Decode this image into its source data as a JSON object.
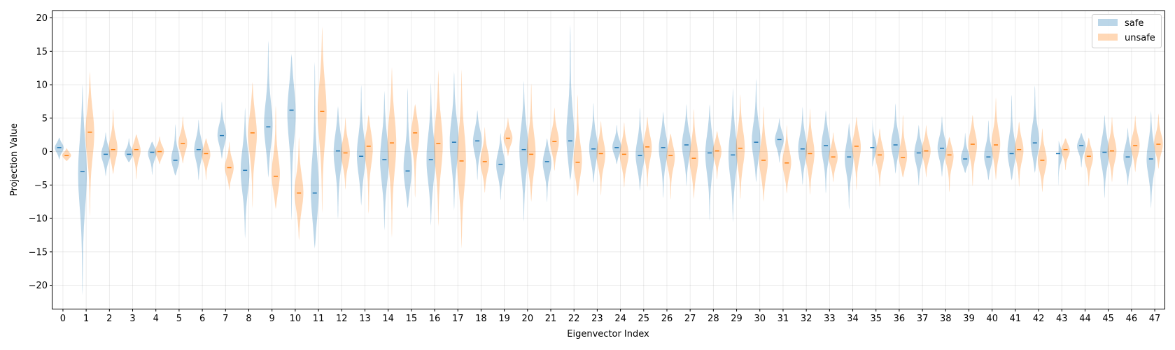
{
  "chart_data": {
    "type": "violin",
    "xlabel": "Eigenvector Index",
    "ylabel": "Projection Value",
    "ylim": [
      -23.5,
      21
    ],
    "yticks": [
      -20,
      -15,
      -10,
      -5,
      0,
      5,
      10,
      15,
      20
    ],
    "grid": true,
    "legend_position": "top-right",
    "colors": {
      "safe": "#1f77b4",
      "unsafe": "#ff7f0e"
    },
    "series": [
      {
        "name": "safe",
        "key": "safe"
      },
      {
        "name": "unsafe",
        "key": "unsafe"
      }
    ],
    "categories": [
      {
        "label": "0",
        "safe": {
          "min": -1.2,
          "max": 2.1,
          "median": 0.6
        },
        "unsafe": {
          "min": -1.4,
          "max": 0.5,
          "median": -0.6
        }
      },
      {
        "label": "1",
        "safe": {
          "min": -21.5,
          "max": 10.1,
          "median": -3.0
        },
        "unsafe": {
          "min": -9.7,
          "max": 12.0,
          "median": 2.9
        }
      },
      {
        "label": "2",
        "safe": {
          "min": -3.7,
          "max": 2.9,
          "median": -0.4
        },
        "unsafe": {
          "min": -3.4,
          "max": 6.4,
          "median": 0.3
        }
      },
      {
        "label": "3",
        "safe": {
          "min": -1.6,
          "max": 2.0,
          "median": -0.4
        },
        "unsafe": {
          "min": -4.2,
          "max": 2.6,
          "median": 0.3
        }
      },
      {
        "label": "4",
        "safe": {
          "min": -3.5,
          "max": 1.5,
          "median": -0.1
        },
        "unsafe": {
          "min": -1.9,
          "max": 2.3,
          "median": 0.0
        }
      },
      {
        "label": "5",
        "safe": {
          "min": -3.6,
          "max": 4.1,
          "median": -1.3
        },
        "unsafe": {
          "min": -1.8,
          "max": 5.3,
          "median": 1.2
        }
      },
      {
        "label": "6",
        "safe": {
          "min": -4.3,
          "max": 4.8,
          "median": 0.3
        },
        "unsafe": {
          "min": -4.3,
          "max": 2.0,
          "median": -0.3
        }
      },
      {
        "label": "7",
        "safe": {
          "min": -1.1,
          "max": 7.5,
          "median": 2.4
        },
        "unsafe": {
          "min": -5.8,
          "max": 1.5,
          "median": -2.4
        }
      },
      {
        "label": "8",
        "safe": {
          "min": -13.0,
          "max": 6.6,
          "median": -2.8
        },
        "unsafe": {
          "min": -8.5,
          "max": 10.4,
          "median": 2.8
        }
      },
      {
        "label": "9",
        "safe": {
          "min": -3.9,
          "max": 16.6,
          "median": 3.7
        },
        "unsafe": {
          "min": -8.6,
          "max": 6.9,
          "median": -3.7
        }
      },
      {
        "label": "10",
        "safe": {
          "min": -10.3,
          "max": 14.6,
          "median": 6.2
        },
        "unsafe": {
          "min": -13.3,
          "max": 2.2,
          "median": -6.2
        }
      },
      {
        "label": "11",
        "safe": {
          "min": -14.5,
          "max": 13.4,
          "median": -6.2
        },
        "unsafe": {
          "min": -9.2,
          "max": 18.7,
          "median": 6.0
        }
      },
      {
        "label": "12",
        "safe": {
          "min": -10.1,
          "max": 6.8,
          "median": 0.1
        },
        "unsafe": {
          "min": -5.7,
          "max": 5.1,
          "median": -0.2
        }
      },
      {
        "label": "13",
        "safe": {
          "min": -8.1,
          "max": 10.0,
          "median": -0.7
        },
        "unsafe": {
          "min": -9.3,
          "max": 5.5,
          "median": 0.8
        }
      },
      {
        "label": "14",
        "safe": {
          "min": -11.8,
          "max": 9.1,
          "median": -1.2
        },
        "unsafe": {
          "min": -12.9,
          "max": 12.6,
          "median": 1.3
        }
      },
      {
        "label": "15",
        "safe": {
          "min": -8.5,
          "max": 9.5,
          "median": -2.9
        },
        "unsafe": {
          "min": -6.9,
          "max": 7.1,
          "median": 2.8
        }
      },
      {
        "label": "16",
        "safe": {
          "min": -11.1,
          "max": 10.3,
          "median": -1.2
        },
        "unsafe": {
          "min": -11.2,
          "max": 12.2,
          "median": 1.2
        }
      },
      {
        "label": "17",
        "safe": {
          "min": -8.8,
          "max": 12.0,
          "median": 1.4
        },
        "unsafe": {
          "min": -14.5,
          "max": 12.3,
          "median": -1.4
        }
      },
      {
        "label": "18",
        "safe": {
          "min": -4.3,
          "max": 6.2,
          "median": 1.6
        },
        "unsafe": {
          "min": -6.2,
          "max": 3.7,
          "median": -1.5
        }
      },
      {
        "label": "19",
        "safe": {
          "min": -7.3,
          "max": 2.8,
          "median": -1.9
        },
        "unsafe": {
          "min": -0.7,
          "max": 5.1,
          "median": 2.0
        }
      },
      {
        "label": "20",
        "safe": {
          "min": -10.5,
          "max": 10.6,
          "median": 0.3
        },
        "unsafe": {
          "min": -7.5,
          "max": 10.2,
          "median": -0.4
        }
      },
      {
        "label": "21",
        "safe": {
          "min": -7.6,
          "max": 2.0,
          "median": -1.5
        },
        "unsafe": {
          "min": -2.9,
          "max": 6.6,
          "median": 1.5
        }
      },
      {
        "label": "22",
        "safe": {
          "min": -4.3,
          "max": 19.0,
          "median": 1.6
        },
        "unsafe": {
          "min": -6.7,
          "max": 8.5,
          "median": -1.6
        }
      },
      {
        "label": "23",
        "safe": {
          "min": -4.7,
          "max": 7.3,
          "median": 0.4
        },
        "unsafe": {
          "min": -6.6,
          "max": 4.6,
          "median": -0.3
        }
      },
      {
        "label": "24",
        "safe": {
          "min": -1.9,
          "max": 4.0,
          "median": 0.6
        },
        "unsafe": {
          "min": -5.4,
          "max": 4.4,
          "median": -0.4
        }
      },
      {
        "label": "25",
        "safe": {
          "min": -5.9,
          "max": 6.6,
          "median": -0.6
        },
        "unsafe": {
          "min": -5.3,
          "max": 5.2,
          "median": 0.7
        }
      },
      {
        "label": "26",
        "safe": {
          "min": -7.0,
          "max": 6.0,
          "median": 0.6
        },
        "unsafe": {
          "min": -7.2,
          "max": 2.7,
          "median": -0.6
        }
      },
      {
        "label": "27",
        "safe": {
          "min": -5.2,
          "max": 7.1,
          "median": 1.0
        },
        "unsafe": {
          "min": -7.1,
          "max": 6.4,
          "median": -1.0
        }
      },
      {
        "label": "28",
        "safe": {
          "min": -10.4,
          "max": 7.1,
          "median": -0.2
        },
        "unsafe": {
          "min": -4.2,
          "max": 3.1,
          "median": 0.1
        }
      },
      {
        "label": "29",
        "safe": {
          "min": -10.6,
          "max": 9.5,
          "median": -0.5
        },
        "unsafe": {
          "min": -7.2,
          "max": 8.6,
          "median": 0.5
        }
      },
      {
        "label": "30",
        "safe": {
          "min": -4.6,
          "max": 10.9,
          "median": 1.4
        },
        "unsafe": {
          "min": -7.5,
          "max": 6.8,
          "median": -1.3
        }
      },
      {
        "label": "31",
        "safe": {
          "min": -1.7,
          "max": 5.0,
          "median": 1.8
        },
        "unsafe": {
          "min": -6.3,
          "max": 4.0,
          "median": -1.7
        }
      },
      {
        "label": "32",
        "safe": {
          "min": -5.0,
          "max": 6.7,
          "median": 0.4
        },
        "unsafe": {
          "min": -6.5,
          "max": 6.5,
          "median": -0.3
        }
      },
      {
        "label": "33",
        "safe": {
          "min": -6.3,
          "max": 6.2,
          "median": 0.9
        },
        "unsafe": {
          "min": -4.6,
          "max": 2.9,
          "median": -0.8
        }
      },
      {
        "label": "34",
        "safe": {
          "min": -8.7,
          "max": 4.3,
          "median": -0.8
        },
        "unsafe": {
          "min": -5.8,
          "max": 5.2,
          "median": 0.8
        }
      },
      {
        "label": "35",
        "safe": {
          "min": -2.3,
          "max": 5.1,
          "median": 0.6
        },
        "unsafe": {
          "min": -5.3,
          "max": 3.5,
          "median": -0.5
        }
      },
      {
        "label": "36",
        "safe": {
          "min": -3.3,
          "max": 7.2,
          "median": 1.0
        },
        "unsafe": {
          "min": -3.9,
          "max": 5.5,
          "median": -0.9
        }
      },
      {
        "label": "37",
        "safe": {
          "min": -5.1,
          "max": 4.0,
          "median": -0.2
        },
        "unsafe": {
          "min": -3.9,
          "max": 4.0,
          "median": 0.1
        }
      },
      {
        "label": "38",
        "safe": {
          "min": -3.8,
          "max": 5.3,
          "median": 0.5
        },
        "unsafe": {
          "min": -6.1,
          "max": 2.2,
          "median": -0.5
        }
      },
      {
        "label": "39",
        "safe": {
          "min": -3.2,
          "max": 2.8,
          "median": -1.1
        },
        "unsafe": {
          "min": -5.2,
          "max": 5.5,
          "median": 1.1
        }
      },
      {
        "label": "40",
        "safe": {
          "min": -4.3,
          "max": 4.7,
          "median": -0.8
        },
        "unsafe": {
          "min": -4.3,
          "max": 8.1,
          "median": 1.0
        }
      },
      {
        "label": "41",
        "safe": {
          "min": -4.3,
          "max": 8.5,
          "median": -0.3
        },
        "unsafe": {
          "min": -5.3,
          "max": 4.5,
          "median": 0.3
        }
      },
      {
        "label": "42",
        "safe": {
          "min": -3.2,
          "max": 9.9,
          "median": 1.3
        },
        "unsafe": {
          "min": -6.1,
          "max": 3.5,
          "median": -1.3
        }
      },
      {
        "label": "43",
        "safe": {
          "min": -5.1,
          "max": 1.8,
          "median": -0.3
        },
        "unsafe": {
          "min": -2.8,
          "max": 2.0,
          "median": 0.3
        }
      },
      {
        "label": "44",
        "safe": {
          "min": -2.4,
          "max": 2.8,
          "median": 0.9
        },
        "unsafe": {
          "min": -5.2,
          "max": 2.1,
          "median": -0.7
        }
      },
      {
        "label": "45",
        "safe": {
          "min": -7.0,
          "max": 5.5,
          "median": -0.1
        },
        "unsafe": {
          "min": -4.6,
          "max": 5.2,
          "median": 0.1
        }
      },
      {
        "label": "46",
        "safe": {
          "min": -5.1,
          "max": 3.6,
          "median": -0.8
        },
        "unsafe": {
          "min": -3.1,
          "max": 5.4,
          "median": 0.9
        }
      },
      {
        "label": "47",
        "safe": {
          "min": -8.5,
          "max": 6.1,
          "median": -1.1
        },
        "unsafe": {
          "min": -2.6,
          "max": 5.7,
          "median": 1.1
        }
      }
    ]
  }
}
